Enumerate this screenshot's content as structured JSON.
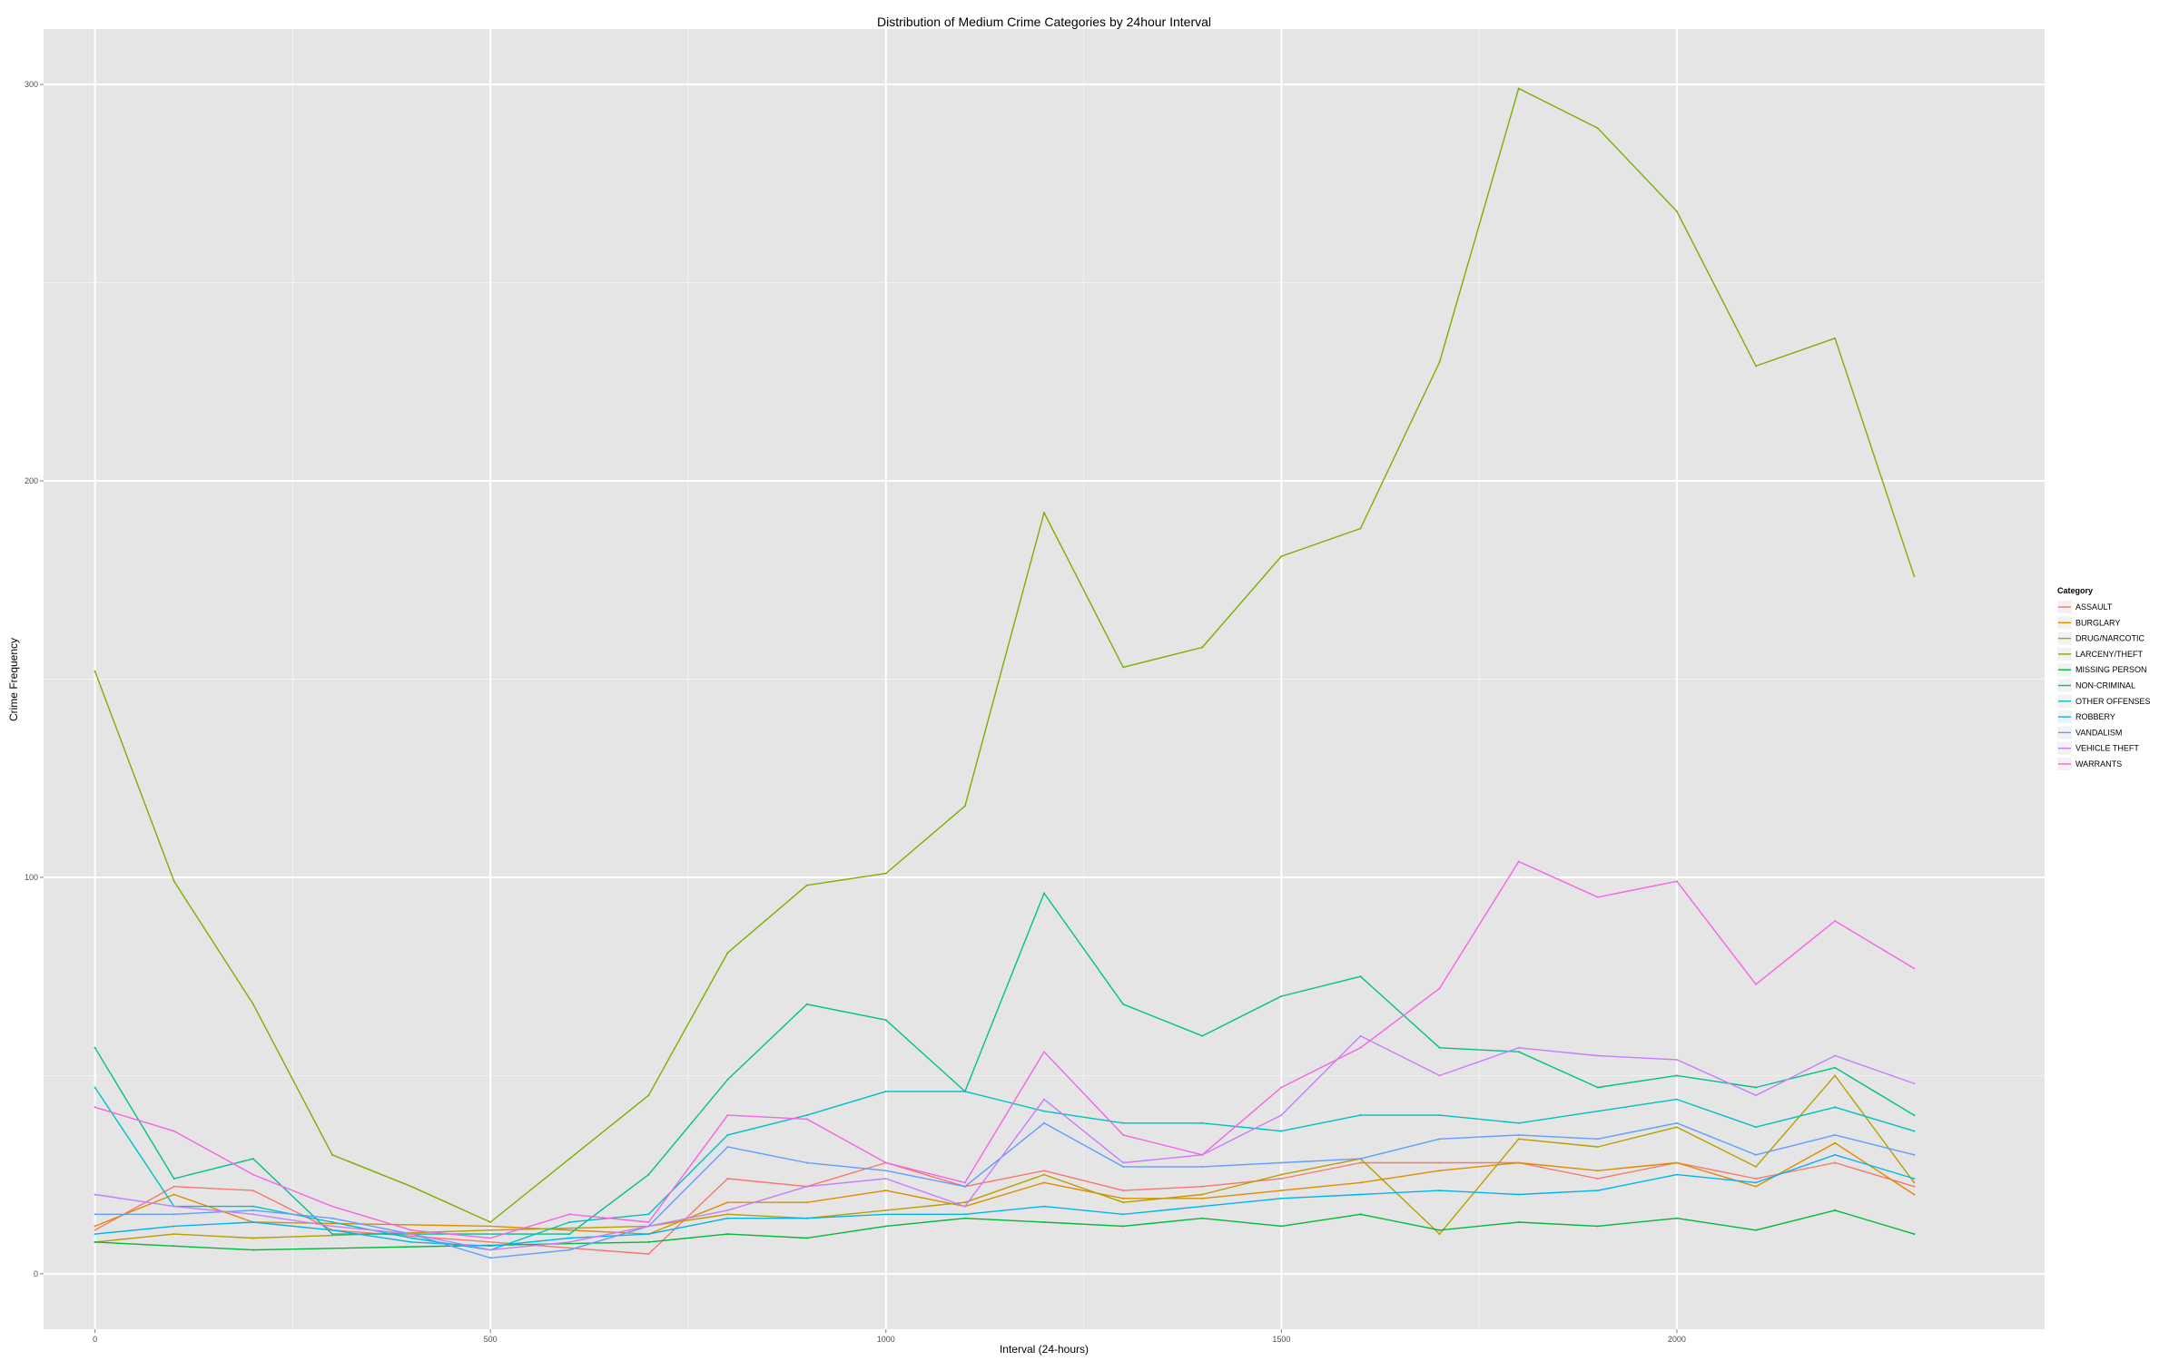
{
  "chart_data": {
    "type": "line",
    "title": "Distribution of Medium Crime Categories by 24hour Interval",
    "xlabel": "Interval (24-hours)",
    "ylabel": "Crime Frequency",
    "xlim": [
      -65,
      2465
    ],
    "ylim": [
      -14,
      314
    ],
    "x_ticks": [
      0,
      500,
      1000,
      1500,
      2000
    ],
    "y_ticks": [
      0,
      100,
      200,
      300
    ],
    "x_tick_labels": [
      "0",
      "500",
      "1000",
      "1500",
      "2000"
    ],
    "y_tick_labels": [
      "0",
      "100",
      "200",
      "300"
    ],
    "grid": true,
    "legend": {
      "title": "Category",
      "position": "right"
    },
    "series": [
      {
        "name": "ASSAULT",
        "color": "#F8766D",
        "points": [
          [
            0,
            11
          ],
          [
            100,
            22
          ],
          [
            200,
            21
          ],
          [
            300,
            11
          ],
          [
            700,
            5
          ],
          [
            800,
            24
          ],
          [
            900,
            22
          ],
          [
            1000,
            28
          ],
          [
            1100,
            22
          ],
          [
            1200,
            26
          ],
          [
            1300,
            21
          ],
          [
            1400,
            22
          ],
          [
            1500,
            24
          ],
          [
            1600,
            28
          ],
          [
            1700,
            28
          ],
          [
            1800,
            28
          ],
          [
            1900,
            24
          ],
          [
            2000,
            28
          ],
          [
            2100,
            24
          ],
          [
            2200,
            28
          ],
          [
            2300,
            22
          ]
        ]
      },
      {
        "name": "BURGLARY",
        "color": "#DE8C00",
        "points": [
          [
            0,
            12
          ],
          [
            100,
            20
          ],
          [
            200,
            13
          ],
          [
            500,
            12
          ],
          [
            700,
            10
          ],
          [
            800,
            18
          ],
          [
            900,
            18
          ],
          [
            1000,
            21
          ],
          [
            1100,
            17
          ],
          [
            1200,
            23
          ],
          [
            1300,
            19
          ],
          [
            1400,
            19
          ],
          [
            1500,
            21
          ],
          [
            1600,
            23
          ],
          [
            1700,
            26
          ],
          [
            1800,
            28
          ],
          [
            1900,
            26
          ],
          [
            2000,
            28
          ],
          [
            2100,
            22
          ],
          [
            2200,
            33
          ],
          [
            2300,
            20
          ]
        ]
      },
      {
        "name": "DRUG/NARCOTIC",
        "color": "#B79F00",
        "points": [
          [
            0,
            8
          ],
          [
            100,
            10
          ],
          [
            200,
            9
          ],
          [
            500,
            11
          ],
          [
            700,
            12
          ],
          [
            800,
            15
          ],
          [
            900,
            14
          ],
          [
            1000,
            16
          ],
          [
            1100,
            18
          ],
          [
            1200,
            25
          ],
          [
            1300,
            18
          ],
          [
            1400,
            20
          ],
          [
            1500,
            25
          ],
          [
            1600,
            29
          ],
          [
            1700,
            10
          ],
          [
            1800,
            34
          ],
          [
            1900,
            32
          ],
          [
            2000,
            37
          ],
          [
            2100,
            27
          ],
          [
            2200,
            50
          ],
          [
            2300,
            23
          ]
        ]
      },
      {
        "name": "LARCENY/THEFT",
        "color": "#7CAE00",
        "points": [
          [
            0,
            152
          ],
          [
            100,
            99
          ],
          [
            200,
            68
          ],
          [
            300,
            30
          ],
          [
            400,
            22
          ],
          [
            500,
            13
          ],
          [
            600,
            29
          ],
          [
            700,
            45
          ],
          [
            800,
            81
          ],
          [
            900,
            98
          ],
          [
            1000,
            101
          ],
          [
            1100,
            118
          ],
          [
            1200,
            192
          ],
          [
            1300,
            153
          ],
          [
            1400,
            158
          ],
          [
            1500,
            181
          ],
          [
            1600,
            188
          ],
          [
            1700,
            230
          ],
          [
            1800,
            299
          ],
          [
            1900,
            289
          ],
          [
            2000,
            268
          ],
          [
            2100,
            229
          ],
          [
            2200,
            236
          ],
          [
            2300,
            176
          ]
        ]
      },
      {
        "name": "MISSING PERSON",
        "color": "#00BA38",
        "points": [
          [
            0,
            8
          ],
          [
            100,
            7
          ],
          [
            200,
            6
          ],
          [
            700,
            8
          ],
          [
            800,
            10
          ],
          [
            900,
            9
          ],
          [
            1000,
            12
          ],
          [
            1100,
            14
          ],
          [
            1200,
            13
          ],
          [
            1300,
            12
          ],
          [
            1400,
            14
          ],
          [
            1500,
            12
          ],
          [
            1600,
            15
          ],
          [
            1700,
            11
          ],
          [
            1800,
            13
          ],
          [
            1900,
            12
          ],
          [
            2000,
            14
          ],
          [
            2100,
            11
          ],
          [
            2200,
            16
          ],
          [
            2300,
            10
          ]
        ]
      },
      {
        "name": "NON-CRIMINAL",
        "color": "#00C08B",
        "points": [
          [
            0,
            57
          ],
          [
            100,
            24
          ],
          [
            200,
            29
          ],
          [
            300,
            10
          ],
          [
            600,
            10
          ],
          [
            700,
            25
          ],
          [
            800,
            49
          ],
          [
            900,
            68
          ],
          [
            1000,
            64
          ],
          [
            1100,
            46
          ],
          [
            1200,
            96
          ],
          [
            1300,
            68
          ],
          [
            1400,
            60
          ],
          [
            1500,
            70
          ],
          [
            1600,
            75
          ],
          [
            1700,
            57
          ],
          [
            1800,
            56
          ],
          [
            1900,
            47
          ],
          [
            2000,
            50
          ],
          [
            2100,
            47
          ],
          [
            2200,
            52
          ],
          [
            2300,
            40
          ]
        ]
      },
      {
        "name": "OTHER OFFENSES",
        "color": "#00BFC4",
        "points": [
          [
            0,
            47
          ],
          [
            100,
            17
          ],
          [
            200,
            17
          ],
          [
            300,
            13
          ],
          [
            400,
            9
          ],
          [
            500,
            6
          ],
          [
            600,
            13
          ],
          [
            700,
            15
          ],
          [
            800,
            35
          ],
          [
            900,
            40
          ],
          [
            1000,
            46
          ],
          [
            1100,
            46
          ],
          [
            1200,
            41
          ],
          [
            1300,
            38
          ],
          [
            1400,
            38
          ],
          [
            1500,
            36
          ],
          [
            1600,
            40
          ],
          [
            1700,
            40
          ],
          [
            1800,
            38
          ],
          [
            1900,
            41
          ],
          [
            2000,
            44
          ],
          [
            2100,
            37
          ],
          [
            2200,
            42
          ],
          [
            2300,
            36
          ]
        ]
      },
      {
        "name": "ROBBERY",
        "color": "#00B4F0",
        "points": [
          [
            0,
            10
          ],
          [
            100,
            12
          ],
          [
            200,
            13
          ],
          [
            300,
            11
          ],
          [
            400,
            8
          ],
          [
            500,
            7
          ],
          [
            600,
            9
          ],
          [
            700,
            10
          ],
          [
            800,
            14
          ],
          [
            900,
            14
          ],
          [
            1000,
            15
          ],
          [
            1100,
            15
          ],
          [
            1200,
            17
          ],
          [
            1300,
            15
          ],
          [
            1400,
            17
          ],
          [
            1500,
            19
          ],
          [
            1600,
            20
          ],
          [
            1700,
            21
          ],
          [
            1800,
            20
          ],
          [
            1900,
            21
          ],
          [
            2000,
            25
          ],
          [
            2100,
            23
          ],
          [
            2200,
            30
          ],
          [
            2300,
            24
          ]
        ]
      },
      {
        "name": "VANDALISM",
        "color": "#619CFF",
        "points": [
          [
            0,
            15
          ],
          [
            100,
            15
          ],
          [
            200,
            16
          ],
          [
            300,
            14
          ],
          [
            400,
            10
          ],
          [
            500,
            4
          ],
          [
            600,
            6
          ],
          [
            700,
            12
          ],
          [
            800,
            32
          ],
          [
            900,
            28
          ],
          [
            1000,
            26
          ],
          [
            1100,
            22
          ],
          [
            1200,
            38
          ],
          [
            1300,
            27
          ],
          [
            1400,
            27
          ],
          [
            1500,
            28
          ],
          [
            1600,
            29
          ],
          [
            1700,
            34
          ],
          [
            1800,
            35
          ],
          [
            1900,
            34
          ],
          [
            2000,
            38
          ],
          [
            2100,
            30
          ],
          [
            2200,
            35
          ],
          [
            2300,
            30
          ]
        ]
      },
      {
        "name": "VEHICLE THEFT",
        "color": "#C77CFF",
        "points": [
          [
            0,
            20
          ],
          [
            100,
            17
          ],
          [
            200,
            15
          ],
          [
            300,
            12
          ],
          [
            400,
            10
          ],
          [
            500,
            6
          ],
          [
            600,
            8
          ],
          [
            700,
            12
          ],
          [
            800,
            16
          ],
          [
            900,
            22
          ],
          [
            1000,
            24
          ],
          [
            1100,
            17
          ],
          [
            1200,
            44
          ],
          [
            1300,
            28
          ],
          [
            1400,
            30
          ],
          [
            1500,
            40
          ],
          [
            1600,
            60
          ],
          [
            1700,
            50
          ],
          [
            1800,
            57
          ],
          [
            1900,
            55
          ],
          [
            2000,
            54
          ],
          [
            2100,
            45
          ],
          [
            2200,
            55
          ],
          [
            2300,
            48
          ]
        ]
      },
      {
        "name": "WARRANTS",
        "color": "#F564E3",
        "points": [
          [
            0,
            42
          ],
          [
            100,
            36
          ],
          [
            200,
            25
          ],
          [
            300,
            17
          ],
          [
            400,
            11
          ],
          [
            500,
            9
          ],
          [
            600,
            15
          ],
          [
            700,
            13
          ],
          [
            800,
            40
          ],
          [
            900,
            39
          ],
          [
            1000,
            28
          ],
          [
            1100,
            23
          ],
          [
            1200,
            56
          ],
          [
            1300,
            35
          ],
          [
            1400,
            30
          ],
          [
            1500,
            47
          ],
          [
            1600,
            57
          ],
          [
            1700,
            72
          ],
          [
            1800,
            104
          ],
          [
            1900,
            95
          ],
          [
            2000,
            99
          ],
          [
            2100,
            73
          ],
          [
            2200,
            89
          ],
          [
            2300,
            77
          ]
        ]
      }
    ]
  }
}
